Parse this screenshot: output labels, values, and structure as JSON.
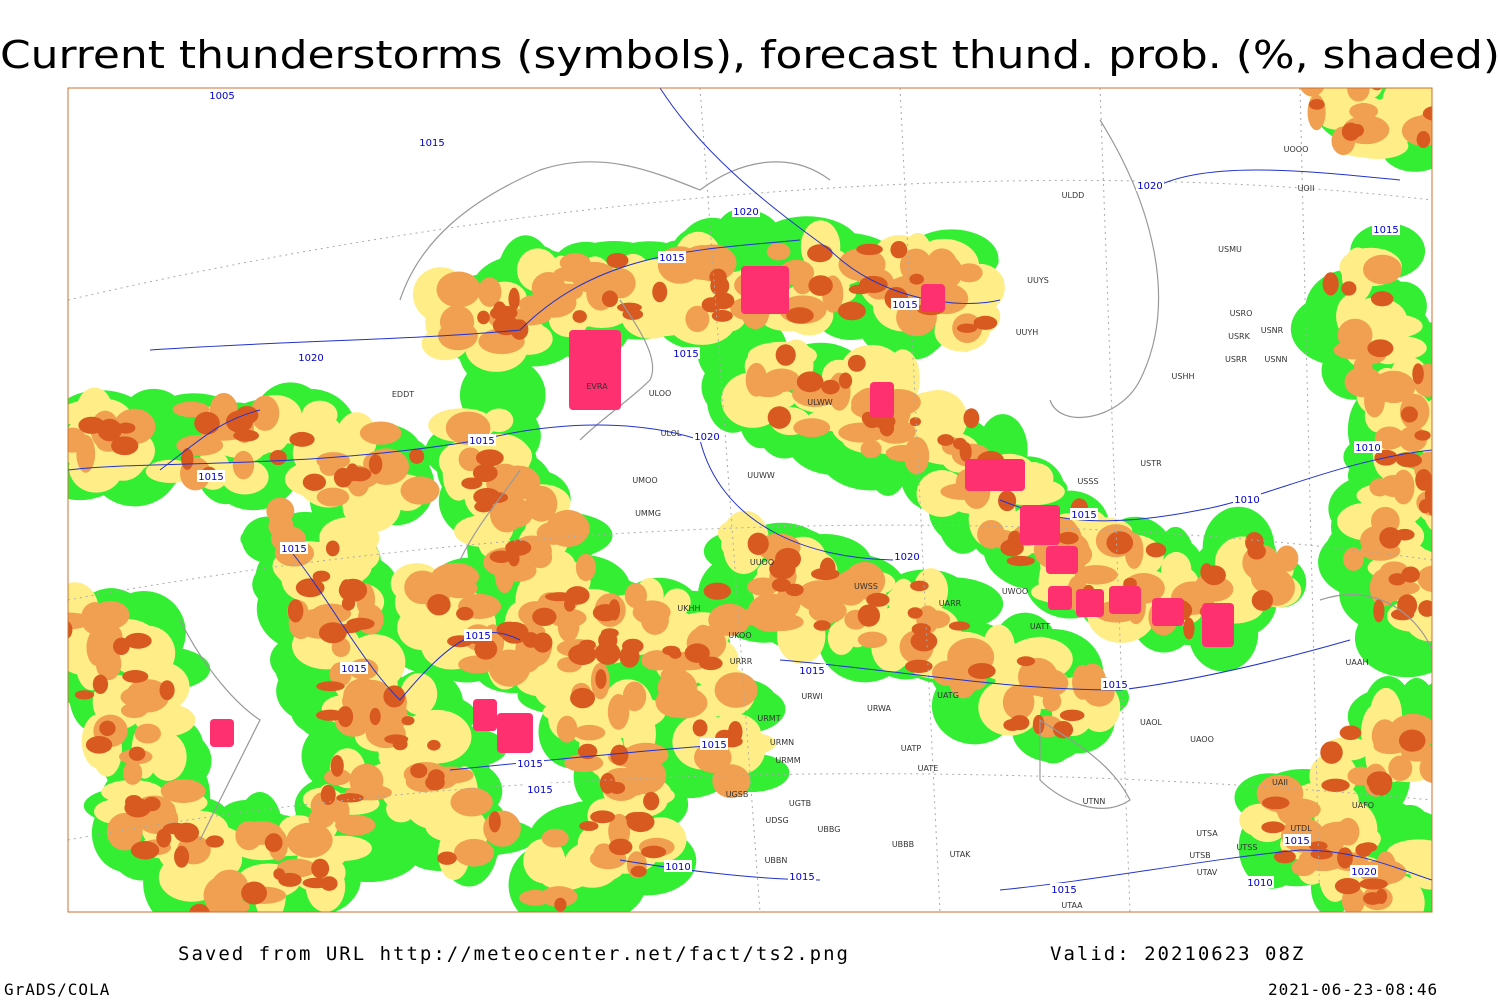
{
  "title": "Current thunderstorms (symbols), forecast thund. prob. (%, shaded)",
  "footer": {
    "source": "Saved from URL http://meteocenter.net/fact/ts2.png",
    "valid": "Valid: 20210623 08Z",
    "software": "GrADS/COLA",
    "timestamp": "2021-06-23-08:46"
  },
  "map": {
    "isobar_labels": [
      "1005",
      "1015",
      "1020",
      "1015",
      "1020",
      "1015",
      "1015",
      "1020",
      "1015",
      "1015",
      "1015",
      "1020",
      "1015",
      "1010",
      "1010",
      "1015",
      "1020",
      "1015",
      "1015",
      "1015",
      "1015",
      "1015",
      "1015",
      "1015",
      "1010",
      "1015",
      "1015",
      "1010",
      "1020",
      "1015"
    ],
    "station_labels": [
      "ULDD",
      "USMU",
      "USRO",
      "USRK",
      "USNR",
      "USRR",
      "USNN",
      "USHH",
      "UUYH",
      "UUYS",
      "UOOO",
      "UOII",
      "EDDT",
      "ULOL",
      "EVRA",
      "ULOO",
      "UMMG",
      "UMOO",
      "ULWW",
      "USSS",
      "USTR",
      "UWOO",
      "UATT",
      "UARR",
      "UWSS",
      "URWI",
      "URWA",
      "URMT",
      "URMN",
      "URMM",
      "UATG",
      "UAOL",
      "UAOO",
      "UATP",
      "UATE",
      "UTNN",
      "UBBB",
      "UTAK",
      "UTSA",
      "UTSB",
      "UTSS",
      "UTAV",
      "UTAA",
      "UAAH",
      "UAII",
      "UAFO",
      "UTDL",
      "UGSB",
      "UGTB",
      "UDSG",
      "UBBG",
      "UBBN",
      "UKHH",
      "UKOO",
      "URRR",
      "UUWW",
      "UUOO"
    ]
  }
}
